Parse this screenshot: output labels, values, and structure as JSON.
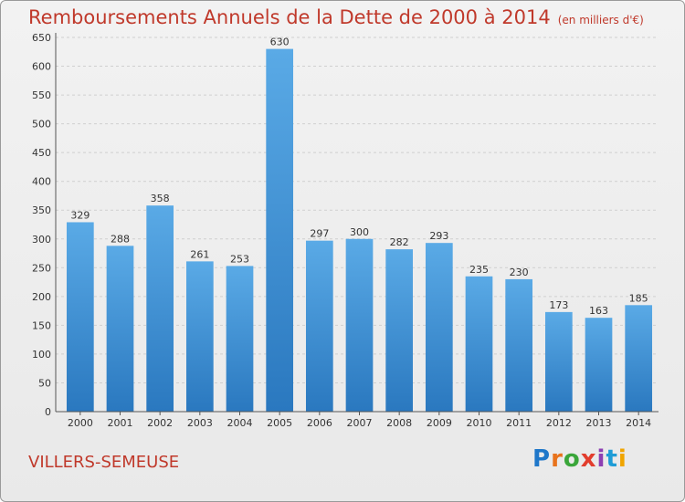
{
  "title": "Remboursements Annuels de la Dette de 2000 à 2014",
  "unit": "(en milliers d'€)",
  "commune": "VILLERS-SEMEUSE",
  "logo": {
    "text": "Proxiti",
    "colors": [
      "#1f77c9",
      "#e8731c",
      "#3aa63a",
      "#e23d2d",
      "#8d3fb3",
      "#1f9cd6",
      "#f0a500"
    ]
  },
  "chart_data": {
    "type": "bar",
    "title": "Remboursements Annuels de la Dette de 2000 à 2014",
    "ylabel": "en milliers d'€",
    "categories": [
      "2000",
      "2001",
      "2002",
      "2003",
      "2004",
      "2005",
      "2006",
      "2007",
      "2008",
      "2009",
      "2010",
      "2011",
      "2012",
      "2013",
      "2014"
    ],
    "values": [
      329,
      288,
      358,
      261,
      253,
      630,
      297,
      300,
      282,
      293,
      235,
      230,
      173,
      163,
      185
    ],
    "ylim": [
      0,
      650
    ],
    "yticks": [
      0,
      50,
      100,
      150,
      200,
      250,
      300,
      350,
      400,
      450,
      500,
      550,
      600,
      650
    ],
    "grid": true,
    "bar_color": "#3d8fd4"
  }
}
